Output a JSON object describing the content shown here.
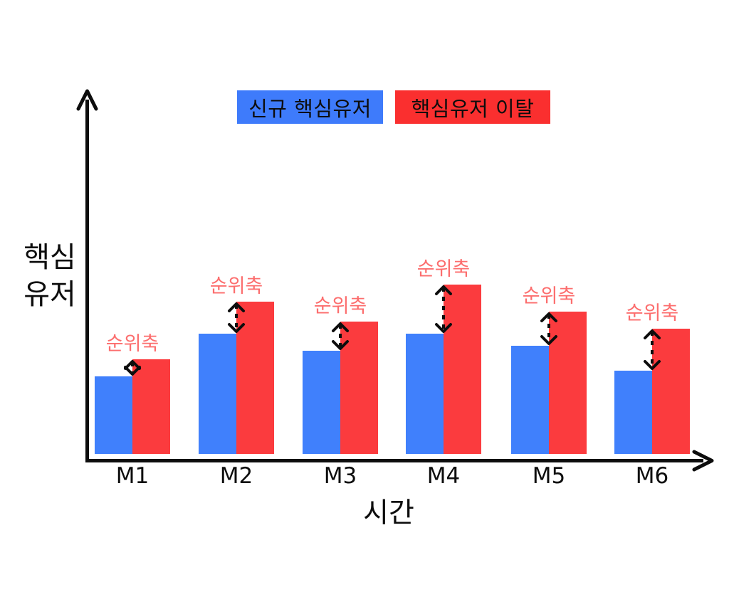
{
  "page": {
    "background": "#ffffff",
    "text_color": "#0d0d0d"
  },
  "legend": {
    "items": [
      {
        "id": "new-core-users",
        "label": "신규 핵심유저",
        "color": "#3E7BFB",
        "text_color": "#0d0d0d"
      },
      {
        "id": "core-user-churn",
        "label": "핵심유저 이탈",
        "color": "#FA2F2F",
        "text_color": "#0d0d0d"
      }
    ]
  },
  "axes": {
    "y_label_lines": [
      "핵심",
      "유저"
    ],
    "x_label": "시간",
    "color": "#0d0d0d"
  },
  "annotation": {
    "label": "순위축",
    "text_color": "#FC6E6E",
    "arrow_color": "#0d0d0d"
  },
  "chart_data": {
    "type": "bar",
    "title": "",
    "xlabel": "시간",
    "ylabel": "핵심 유저",
    "categories": [
      "M1",
      "M2",
      "M3",
      "M4",
      "M5",
      "M6"
    ],
    "series": [
      {
        "name": "신규 핵심유저",
        "color": "#4080FC",
        "values": [
          46,
          71,
          61,
          71,
          64,
          49
        ]
      },
      {
        "name": "핵심유저 이탈",
        "color": "#FB3B3E",
        "values": [
          56,
          90,
          78,
          100,
          84,
          74
        ]
      }
    ],
    "ylim": [
      0,
      105
    ],
    "units": "relative scale (no numeric ticks shown on chart)",
    "gridlines": false,
    "legend_position": "top-center",
    "per_category_annotation": {
      "label": "순위축",
      "meaning": "dashed double-headed arrow marking gap between churn bar top and new-user bar top",
      "applies_to": [
        "M1",
        "M2",
        "M3",
        "M4",
        "M5",
        "M6"
      ]
    }
  }
}
